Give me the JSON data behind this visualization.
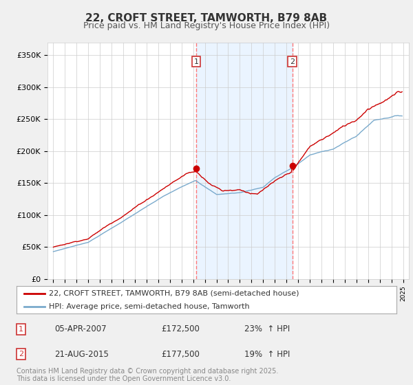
{
  "title": "22, CROFT STREET, TAMWORTH, B79 8AB",
  "subtitle": "Price paid vs. HM Land Registry's House Price Index (HPI)",
  "ylim": [
    0,
    370000
  ],
  "yticks": [
    0,
    50000,
    100000,
    150000,
    200000,
    250000,
    300000,
    350000
  ],
  "ytick_labels": [
    "£0",
    "£50K",
    "£100K",
    "£150K",
    "£200K",
    "£250K",
    "£300K",
    "£350K"
  ],
  "bg_color": "#f0f0f0",
  "plot_bg_color": "#ffffff",
  "grid_color": "#cccccc",
  "red_line_color": "#cc0000",
  "blue_line_color": "#7aaacc",
  "vline_color": "#ff7777",
  "shade_color": "#ddeeff",
  "sale1": {
    "date": "05-APR-2007",
    "price": 172500,
    "label": "1",
    "pct": "23%",
    "dir": "↑"
  },
  "sale2": {
    "date": "21-AUG-2015",
    "price": 177500,
    "label": "2",
    "pct": "19%",
    "dir": "↑"
  },
  "legend_red": "22, CROFT STREET, TAMWORTH, B79 8AB (semi-detached house)",
  "legend_blue": "HPI: Average price, semi-detached house, Tamworth",
  "footer": "Contains HM Land Registry data © Crown copyright and database right 2025.\nThis data is licensed under the Open Government Licence v3.0.",
  "title_fontsize": 11,
  "subtitle_fontsize": 9,
  "tick_fontsize": 8,
  "legend_fontsize": 8,
  "footer_fontsize": 7
}
